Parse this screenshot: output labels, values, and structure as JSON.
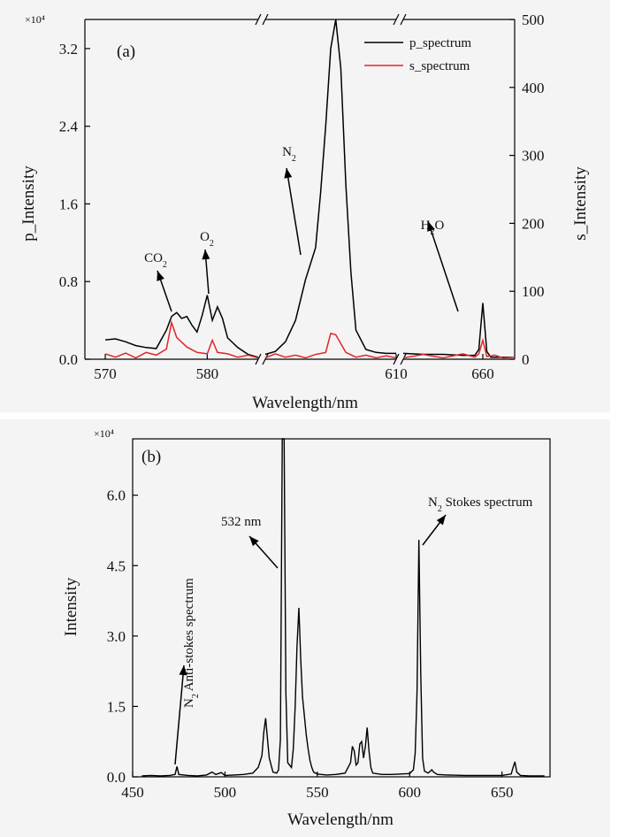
{
  "chart_data": [
    {
      "panel_label": "(a)",
      "type": "line",
      "multiplier_label": "×10⁴",
      "xlabel": "Wavelength/nm",
      "ylabel_left": "p_Intensity",
      "ylabel_right": "s_Intensity",
      "broken_x_axis": true,
      "x_tick_labels": [
        "570",
        "580",
        "610",
        "660"
      ],
      "y_left_ticks": [
        "0.0",
        "0.8",
        "1.6",
        "2.4",
        "3.2"
      ],
      "y_left_ylim": [
        0,
        3.5
      ],
      "y_right_ticks": [
        "0",
        "100",
        "200",
        "300",
        "400",
        "500"
      ],
      "y_right_ylim": [
        0,
        500
      ],
      "legend_position": "top-right",
      "series": [
        {
          "name": "p_spectrum",
          "color": "#000000",
          "axis": "left",
          "points": [
            [
              570,
              0.2
            ],
            [
              571,
              0.21
            ],
            [
              572,
              0.18
            ],
            [
              573,
              0.14
            ],
            [
              574,
              0.12
            ],
            [
              575,
              0.11
            ],
            [
              576,
              0.3
            ],
            [
              576.5,
              0.44
            ],
            [
              577,
              0.48
            ],
            [
              577.5,
              0.42
            ],
            [
              578,
              0.44
            ],
            [
              578.5,
              0.35
            ],
            [
              579,
              0.28
            ],
            [
              579.5,
              0.45
            ],
            [
              580,
              0.66
            ],
            [
              580.5,
              0.4
            ],
            [
              581,
              0.54
            ],
            [
              581.5,
              0.42
            ],
            [
              582,
              0.22
            ],
            [
              583,
              0.12
            ],
            [
              584,
              0.05
            ],
            [
              585,
              0.02
            ],
            [
              597,
              0.05
            ],
            [
              598,
              0.08
            ],
            [
              599,
              0.18
            ],
            [
              600,
              0.4
            ],
            [
              601,
              0.82
            ],
            [
              602,
              1.15
            ],
            [
              602.5,
              1.72
            ],
            [
              603,
              2.4
            ],
            [
              603.5,
              3.2
            ],
            [
              604,
              3.5
            ],
            [
              604.5,
              3.0
            ],
            [
              605,
              1.8
            ],
            [
              605.5,
              0.9
            ],
            [
              606,
              0.3
            ],
            [
              607,
              0.1
            ],
            [
              608,
              0.07
            ],
            [
              609,
              0.06
            ],
            [
              610,
              0.06
            ],
            [
              640,
              0.06
            ],
            [
              645,
              0.05
            ],
            [
              650,
              0.05
            ],
            [
              655,
              0.04
            ],
            [
              658,
              0.04
            ],
            [
              659,
              0.1
            ],
            [
              660,
              0.58
            ],
            [
              661,
              0.08
            ],
            [
              662,
              0.02
            ],
            [
              665,
              0.02
            ],
            [
              668,
              0.02
            ]
          ]
        },
        {
          "name": "s_spectrum",
          "color": "#e0262b",
          "axis": "right",
          "points": [
            [
              570,
              8
            ],
            [
              571,
              3
            ],
            [
              572,
              9
            ],
            [
              573,
              2
            ],
            [
              574,
              10
            ],
            [
              575,
              6
            ],
            [
              576,
              15
            ],
            [
              576.5,
              54
            ],
            [
              577,
              32
            ],
            [
              578,
              18
            ],
            [
              579,
              10
            ],
            [
              580,
              8
            ],
            [
              580.5,
              28
            ],
            [
              581,
              10
            ],
            [
              582,
              8
            ],
            [
              583,
              3
            ],
            [
              584,
              6
            ],
            [
              585,
              2
            ],
            [
              597,
              2
            ],
            [
              598,
              8
            ],
            [
              599,
              3
            ],
            [
              600,
              6
            ],
            [
              601,
              2
            ],
            [
              602,
              7
            ],
            [
              603,
              10
            ],
            [
              603.5,
              38
            ],
            [
              604,
              36
            ],
            [
              605,
              10
            ],
            [
              606,
              3
            ],
            [
              607,
              6
            ],
            [
              608,
              2
            ],
            [
              609,
              5
            ],
            [
              610,
              2
            ],
            [
              640,
              2
            ],
            [
              645,
              7
            ],
            [
              650,
              2
            ],
            [
              655,
              8
            ],
            [
              658,
              3
            ],
            [
              659,
              8
            ],
            [
              660,
              28
            ],
            [
              661,
              4
            ],
            [
              663,
              6
            ],
            [
              665,
              2
            ],
            [
              668,
              3
            ]
          ]
        }
      ],
      "annotations": [
        {
          "base": "CO",
          "sub": "2",
          "rest": ""
        },
        {
          "base": "O",
          "sub": "2",
          "rest": ""
        },
        {
          "base": "N",
          "sub": "2",
          "rest": ""
        },
        {
          "base": "H",
          "sub": "2",
          "rest": "O"
        }
      ]
    },
    {
      "panel_label": "(b)",
      "type": "line",
      "multiplier_label": "×10⁴",
      "xlabel": "Wavelength/nm",
      "ylabel": "Intensity",
      "x_tick_labels": [
        "450",
        "500",
        "550",
        "600",
        "650"
      ],
      "x_ticks": [
        450,
        500,
        550,
        600,
        650
      ],
      "xlim": [
        450,
        676
      ],
      "y_ticks": [
        "0.0",
        "1.5",
        "3.0",
        "4.5",
        "6.0"
      ],
      "ylim": [
        0,
        7.2
      ],
      "series": [
        {
          "color": "#000000",
          "points": [
            [
              455,
              0.02
            ],
            [
              460,
              0.03
            ],
            [
              465,
              0.02
            ],
            [
              470,
              0.03
            ],
            [
              473,
              0.05
            ],
            [
              474,
              0.22
            ],
            [
              475,
              0.05
            ],
            [
              480,
              0.03
            ],
            [
              485,
              0.02
            ],
            [
              490,
              0.04
            ],
            [
              493,
              0.1
            ],
            [
              495,
              0.05
            ],
            [
              498,
              0.09
            ],
            [
              500,
              0.03
            ],
            [
              505,
              0.04
            ],
            [
              510,
              0.05
            ],
            [
              515,
              0.08
            ],
            [
              518,
              0.2
            ],
            [
              520,
              0.45
            ],
            [
              521,
              0.95
            ],
            [
              522,
              1.25
            ],
            [
              523,
              0.8
            ],
            [
              524,
              0.4
            ],
            [
              525,
              0.25
            ],
            [
              526,
              0.1
            ],
            [
              528,
              0.08
            ],
            [
              529,
              0.15
            ],
            [
              530,
              0.8
            ],
            [
              531,
              7.2
            ],
            [
              532,
              7.2
            ],
            [
              533,
              1.8
            ],
            [
              534,
              0.3
            ],
            [
              536,
              0.2
            ],
            [
              537,
              0.6
            ],
            [
              538,
              1.5
            ],
            [
              539,
              2.8
            ],
            [
              540,
              3.6
            ],
            [
              541,
              2.5
            ],
            [
              542,
              1.7
            ],
            [
              543,
              1.3
            ],
            [
              544,
              0.9
            ],
            [
              545,
              0.6
            ],
            [
              546,
              0.35
            ],
            [
              547,
              0.2
            ],
            [
              548,
              0.1
            ],
            [
              550,
              0.06
            ],
            [
              555,
              0.04
            ],
            [
              560,
              0.05
            ],
            [
              565,
              0.08
            ],
            [
              568,
              0.3
            ],
            [
              569,
              0.65
            ],
            [
              570,
              0.55
            ],
            [
              571,
              0.25
            ],
            [
              572,
              0.3
            ],
            [
              573,
              0.7
            ],
            [
              574,
              0.75
            ],
            [
              575,
              0.4
            ],
            [
              576,
              0.65
            ],
            [
              577,
              1.05
            ],
            [
              578,
              0.55
            ],
            [
              579,
              0.2
            ],
            [
              580,
              0.08
            ],
            [
              585,
              0.05
            ],
            [
              590,
              0.05
            ],
            [
              595,
              0.06
            ],
            [
              600,
              0.07
            ],
            [
              602,
              0.15
            ],
            [
              603,
              0.5
            ],
            [
              604,
              1.8
            ],
            [
              605,
              5.05
            ],
            [
              606,
              2.2
            ],
            [
              607,
              0.4
            ],
            [
              608,
              0.12
            ],
            [
              610,
              0.08
            ],
            [
              612,
              0.15
            ],
            [
              613,
              0.1
            ],
            [
              615,
              0.05
            ],
            [
              620,
              0.04
            ],
            [
              630,
              0.03
            ],
            [
              640,
              0.03
            ],
            [
              650,
              0.03
            ],
            [
              655,
              0.06
            ],
            [
              656,
              0.2
            ],
            [
              657,
              0.32
            ],
            [
              658,
              0.1
            ],
            [
              660,
              0.03
            ],
            [
              665,
              0.02
            ],
            [
              670,
              0.02
            ],
            [
              673,
              0.02
            ]
          ]
        }
      ],
      "annotations": [
        {
          "base": "532 nm",
          "sub": "",
          "rest": ""
        },
        {
          "base": "N",
          "sub": "2",
          "rest": " Stokes spectrum"
        },
        {
          "base": "N",
          "sub": "2",
          "rest": " Anti-stokes spectrum"
        }
      ]
    }
  ]
}
